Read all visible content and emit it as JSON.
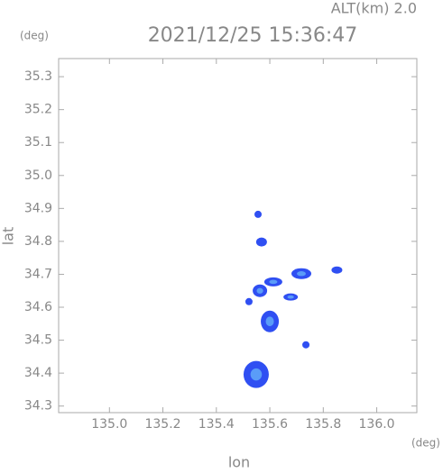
{
  "chart_data": {
    "type": "scatter",
    "title": "2021/12/25 15:36:47",
    "subtitle": "ALT(km)  2.0",
    "y_unit": "(deg)",
    "x_unit": "(deg)",
    "xlabel": "lon",
    "ylabel": "lat",
    "xlim": [
      134.81,
      136.15
    ],
    "ylim": [
      34.28,
      35.355
    ],
    "xticks": [
      {
        "value": 135,
        "label": "135.0"
      },
      135.2,
      135.4,
      135.6,
      135.8,
      {
        "value": 136,
        "label": "136.0"
      }
    ],
    "yticks": [
      34.3,
      34.4,
      34.5,
      34.6,
      34.7,
      34.8,
      34.9,
      {
        "value": 35,
        "label": "35.0"
      },
      35.1,
      35.2,
      35.3
    ],
    "series": [
      {
        "color": "#2f4ff2",
        "x": [
          135.556,
          135.569,
          135.613,
          135.718,
          135.851,
          135.563,
          135.678,
          135.6,
          135.735,
          135.549,
          135.522
        ],
        "y": [
          34.882,
          34.798,
          34.677,
          34.702,
          34.713,
          34.65,
          34.631,
          34.557,
          34.486,
          34.396,
          34.617
        ]
      }
    ]
  }
}
